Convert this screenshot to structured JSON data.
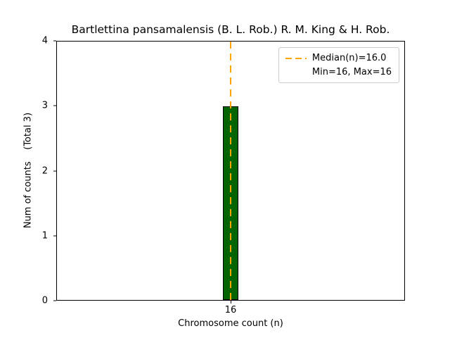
{
  "chart_data": {
    "type": "bar",
    "title": "Bartlettina pansamalensis (B. L. Rob.) R. M. King & H. Rob.",
    "xlabel": "Chromosome count (n)",
    "ylabel": "Num of counts    (Total 3)",
    "categories": [
      "16"
    ],
    "values": [
      3
    ],
    "ylim": [
      0,
      4
    ],
    "yticks": [
      0,
      1,
      2,
      3,
      4
    ],
    "bar_color": "#006400",
    "bar_edge_color": "#000000",
    "median_line_color": "#FFA500",
    "median": 16.0,
    "min": 16,
    "max": 16,
    "legend": [
      "Median(n)=16.0",
      "Min=16, Max=16"
    ],
    "legend_position": "upper right",
    "grid": false
  }
}
